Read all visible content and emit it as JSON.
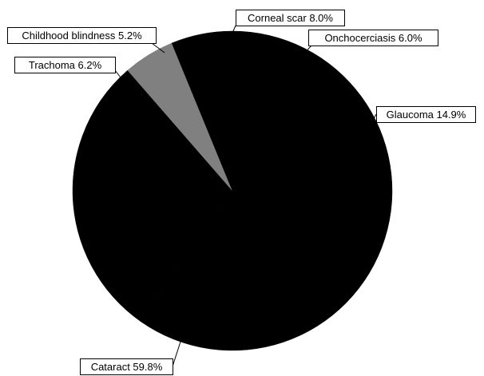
{
  "chart_data": {
    "type": "pie",
    "title": "",
    "start_angle_deg": 90,
    "direction": "clockwise",
    "slices": [
      {
        "label": "Cataract 59.8%",
        "category": "Cataract",
        "value": 59.8,
        "color": "#000000"
      },
      {
        "label": "Glaucoma 14.9%",
        "category": "Glaucoma",
        "value": 14.9,
        "color": "#000000"
      },
      {
        "label": "Onchocerciasis 6.0%",
        "category": "Onchocerciasis",
        "value": 6.0,
        "color": "#000000"
      },
      {
        "label": "Corneal scar 8.0%",
        "category": "Corneal scar",
        "value": 8.0,
        "color": "#000000"
      },
      {
        "label": "Childhood blindness 5.2%",
        "category": "Childhood blindness",
        "value": 5.2,
        "color": "#808080"
      },
      {
        "label": "Trachoma 6.2%",
        "category": "Trachoma",
        "value": 6.2,
        "color": "#000000"
      }
    ]
  }
}
